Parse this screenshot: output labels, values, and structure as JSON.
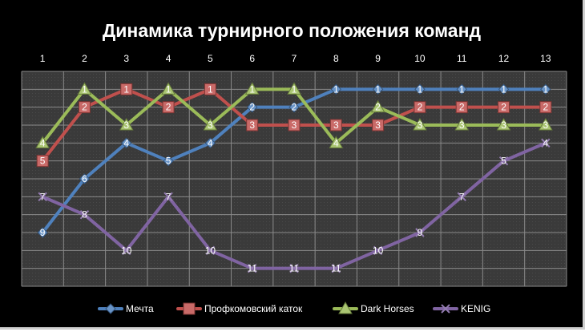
{
  "chart_data": {
    "type": "line",
    "title": "Динамика турнирного положения команд",
    "xlabel": "",
    "ylabel": "",
    "x": [
      "1",
      "2",
      "3",
      "4",
      "5",
      "6",
      "7",
      "8",
      "9",
      "10",
      "11",
      "12",
      "13"
    ],
    "x_axis_position": "top",
    "y_reversed": true,
    "ylim": [
      0,
      12
    ],
    "grid": true,
    "legend": "bottom",
    "series": [
      {
        "name": "Мечта",
        "values": [
          9,
          6,
          4,
          5,
          4,
          2,
          2,
          1,
          1,
          1,
          1,
          1,
          1
        ],
        "color": "#4f81bd",
        "marker": "diamond"
      },
      {
        "name": "Профкомовский  каток",
        "values": [
          5,
          2,
          1,
          2,
          1,
          3,
          3,
          3,
          3,
          2,
          2,
          2,
          2
        ],
        "color": "#c0504d",
        "marker": "square"
      },
      {
        "name": "Dark Horses",
        "values": [
          4,
          1,
          3,
          1,
          3,
          1,
          1,
          4,
          2,
          3,
          3,
          3,
          3
        ],
        "color": "#9bbb59",
        "marker": "triangle"
      },
      {
        "name": "KENIG",
        "values": [
          7,
          8,
          10,
          7,
          10,
          11,
          11,
          11,
          10,
          9,
          7,
          5,
          4
        ],
        "color": "#8064a2",
        "marker": "x"
      }
    ]
  }
}
